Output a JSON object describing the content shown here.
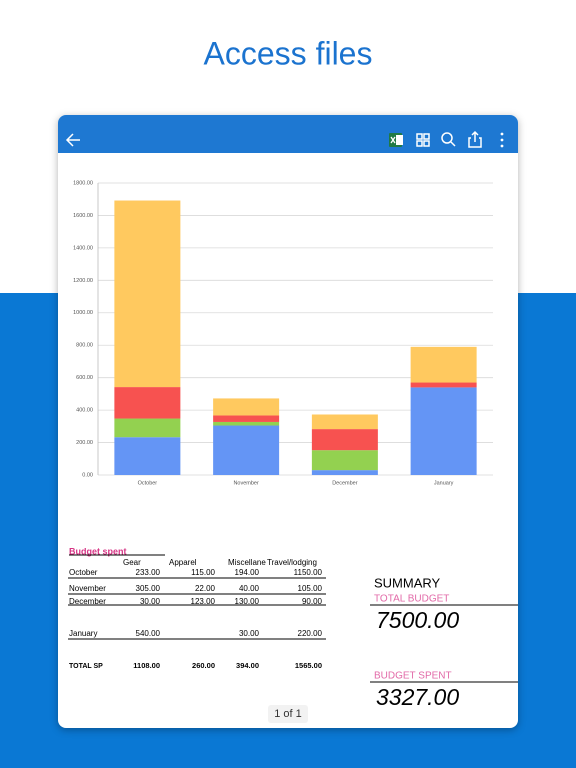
{
  "header": {
    "title": "Access files"
  },
  "chart_data": {
    "type": "stacked_bar",
    "categories": [
      "October",
      "November",
      "December",
      "January"
    ],
    "series": [
      {
        "name": "Gear",
        "color": "#6495f5",
        "values": [
          233,
          305,
          30,
          540
        ]
      },
      {
        "name": "Apparel",
        "color": "#93d150",
        "values": [
          115,
          22,
          123,
          null
        ]
      },
      {
        "name": "Miscellaneous",
        "color": "#f75250",
        "values": [
          194,
          40,
          130,
          30
        ]
      },
      {
        "name": "Travel/lodging",
        "color": "#ffc95f",
        "values": [
          1150,
          105,
          90,
          220
        ]
      }
    ],
    "ylim": [
      0,
      1800
    ],
    "yticks": [
      {
        "value": 0,
        "label": "0.00"
      },
      {
        "value": 200,
        "label": "200.00"
      },
      {
        "value": 400,
        "label": "400.00"
      },
      {
        "value": 600,
        "label": "600.00"
      },
      {
        "value": 800,
        "label": "800.00"
      },
      {
        "value": 1000,
        "label": "1000.00"
      },
      {
        "value": 1200,
        "label": "1200.00"
      },
      {
        "value": 1400,
        "label": "1400.00"
      },
      {
        "value": 1600,
        "label": "1600.00"
      },
      {
        "value": 1800,
        "label": "1800.00"
      }
    ],
    "grid": true
  },
  "table": {
    "title": "Budget spent",
    "columns": [
      "Gear",
      "Apparel",
      "Miscellane",
      "Travel/lodging"
    ],
    "rows": [
      [
        "October",
        "233.00",
        "115.00",
        "194.00",
        "1150.00"
      ],
      [
        "November",
        "305.00",
        "22.00",
        "40.00",
        "105.00"
      ],
      [
        "December",
        "30.00",
        "123.00",
        "130.00",
        "90.00"
      ],
      [
        "January",
        "540.00",
        "",
        "30.00",
        "220.00"
      ],
      [
        "TOTAL SP",
        "1108.00",
        "260.00",
        "394.00",
        "1565.00"
      ]
    ]
  },
  "summary": {
    "title": "SUMMARY",
    "total_budget_label": "TOTAL BUDGET",
    "total_budget": "7500.00",
    "budget_spent_label": "BUDGET SPENT",
    "budget_spent": "3327.00"
  },
  "pager": "1 of 1"
}
